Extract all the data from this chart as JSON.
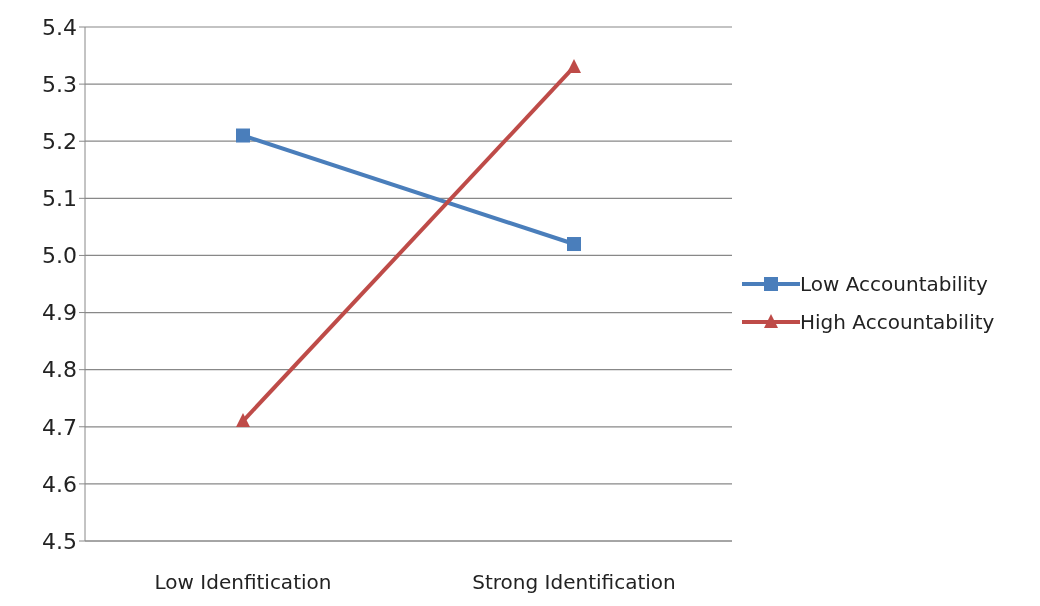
{
  "chart_data": {
    "type": "line",
    "categories": [
      "Low Idenfitication",
      "Strong Identification"
    ],
    "series": [
      {
        "name": "Low Accountability",
        "color": "#4a7ebb",
        "values": [
          5.21,
          5.02
        ],
        "marker": "square"
      },
      {
        "name": "High Accountability",
        "color": "#be4b48",
        "values": [
          4.71,
          5.33
        ],
        "marker": "triangle"
      }
    ],
    "ylim": [
      4.5,
      5.4
    ],
    "yticks": [
      {
        "value": 4.5,
        "label": "4.5"
      },
      {
        "value": 4.6,
        "label": "4.6"
      },
      {
        "value": 4.7,
        "label": "4.7"
      },
      {
        "value": 4.8,
        "label": "4.8"
      },
      {
        "value": 4.9,
        "label": "4.9"
      },
      {
        "value": 5.0,
        "label": "5.0"
      },
      {
        "value": 5.1,
        "label": "5.1"
      },
      {
        "value": 5.2,
        "label": "5.2"
      },
      {
        "value": 5.3,
        "label": "5.3"
      },
      {
        "value": 5.4,
        "label": "5.4"
      }
    ],
    "grid": "y",
    "legend": "right",
    "line_style": "solid"
  }
}
